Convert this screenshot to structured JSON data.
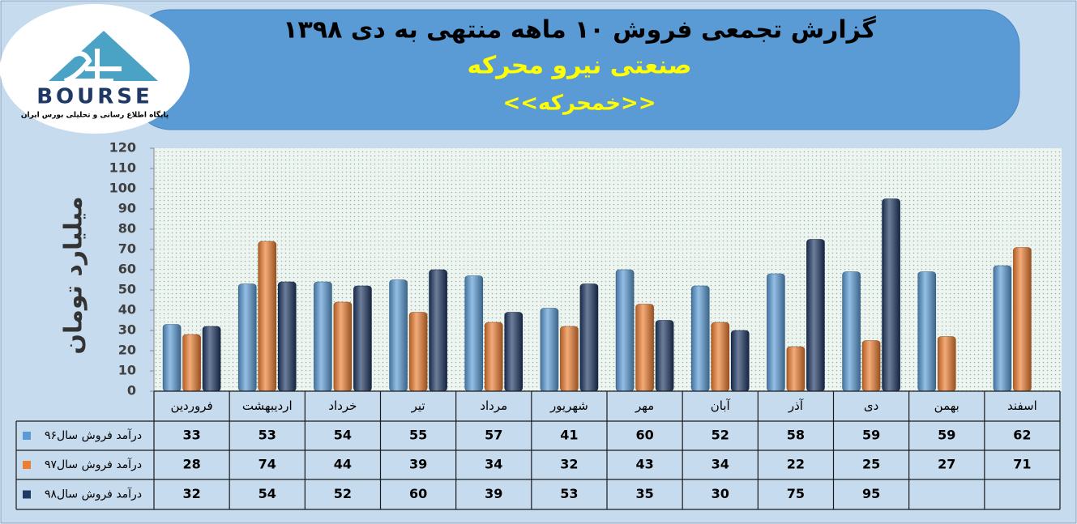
{
  "logo": {
    "brand": "BOURSE",
    "tagline": "پایگاه اطلاع رسانی و تحلیلی بورس ایران"
  },
  "chart_data": {
    "type": "bar",
    "title": "گزارش تجمعی فروش  ۱۰ ماهه منتهی به دی ۱۳۹۸",
    "subtitle": "صنعتی نیرو محرکه",
    "symbol": "<<خمحرکه>>",
    "y_label": "میلیارد تومان",
    "categories": [
      "فروردین",
      "اردیبهشت",
      "خرداد",
      "تیر",
      "مرداد",
      "شهریور",
      "مهر",
      "آبان",
      "آذر",
      "دی",
      "بهمن",
      "اسفند"
    ],
    "series": [
      {
        "name": "درآمد فروش سال۹۶",
        "color": "#5b9bd5",
        "values": [
          33,
          53,
          54,
          55,
          57,
          41,
          60,
          52,
          58,
          59,
          59,
          62
        ]
      },
      {
        "name": "درآمد فروش سال۹۷",
        "color": "#ed7d31",
        "values": [
          28,
          74,
          44,
          39,
          34,
          32,
          43,
          34,
          22,
          25,
          27,
          71
        ]
      },
      {
        "name": "درآمد فروش سال۹۸",
        "color": "#1f3864",
        "values": [
          32,
          54,
          52,
          60,
          39,
          53,
          35,
          30,
          75,
          95,
          null,
          null
        ]
      }
    ],
    "ylim": [
      0,
      120
    ],
    "yticks": [
      0,
      10,
      20,
      30,
      40,
      50,
      60,
      70,
      80,
      90,
      100,
      110,
      120
    ],
    "data_table": true
  }
}
